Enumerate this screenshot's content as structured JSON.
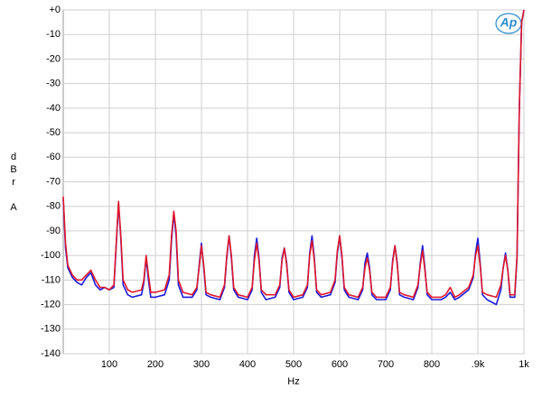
{
  "chart_data": {
    "type": "line",
    "x_label": "Hz",
    "y_label": "dBr",
    "y_label_unit": "A",
    "logo": "Ap",
    "x": [
      0,
      5,
      10,
      20,
      30,
      40,
      50,
      60,
      70,
      80,
      90,
      100,
      110,
      115,
      120,
      125,
      130,
      140,
      150,
      170,
      175,
      180,
      185,
      190,
      200,
      220,
      230,
      235,
      240,
      245,
      250,
      260,
      280,
      290,
      295,
      300,
      305,
      310,
      320,
      340,
      350,
      355,
      360,
      365,
      370,
      380,
      400,
      410,
      415,
      420,
      425,
      430,
      440,
      460,
      470,
      475,
      480,
      485,
      490,
      500,
      520,
      530,
      535,
      540,
      545,
      550,
      560,
      580,
      590,
      595,
      600,
      605,
      610,
      620,
      640,
      650,
      655,
      660,
      665,
      670,
      680,
      700,
      710,
      715,
      720,
      725,
      730,
      740,
      760,
      770,
      775,
      780,
      785,
      790,
      800,
      820,
      830,
      840,
      850,
      860,
      880,
      890,
      895,
      900,
      905,
      910,
      920,
      940,
      950,
      955,
      960,
      965,
      970,
      980,
      985,
      990,
      995,
      1000
    ],
    "series": [
      {
        "color": "#1a1adc",
        "values": [
          -77,
          -97,
          -105,
          -109,
          -111,
          -112,
          -109,
          -107,
          -112,
          -114,
          -113,
          -114,
          -113,
          -96,
          -79,
          -93,
          -112,
          -116,
          -117,
          -116,
          -111,
          -101,
          -110,
          -117,
          -117,
          -116,
          -110,
          -94,
          -83,
          -92,
          -112,
          -117,
          -117,
          -114,
          -104,
          -95,
          -105,
          -116,
          -117,
          -118,
          -113,
          -101,
          -92,
          -101,
          -114,
          -117,
          -118,
          -114,
          -100,
          -93,
          -101,
          -115,
          -118,
          -117,
          -113,
          -101,
          -97,
          -103,
          -115,
          -118,
          -117,
          -113,
          -99,
          -92,
          -101,
          -115,
          -117,
          -116,
          -111,
          -99,
          -92,
          -101,
          -114,
          -117,
          -118,
          -114,
          -103,
          -99,
          -105,
          -116,
          -118,
          -118,
          -114,
          -102,
          -96,
          -103,
          -116,
          -117,
          -118,
          -113,
          -103,
          -96,
          -105,
          -116,
          -118,
          -118,
          -117,
          -115,
          -118,
          -117,
          -114,
          -109,
          -99,
          -93,
          -103,
          -116,
          -118,
          -120,
          -114,
          -105,
          -99,
          -106,
          -117,
          -117,
          -101,
          -40,
          -5,
          0
        ]
      },
      {
        "color": "#e0182c",
        "values": [
          -76,
          -95,
          -104,
          -108,
          -110,
          -110,
          -108,
          -106,
          -110,
          -113,
          -113,
          -114,
          -112,
          -95,
          -78,
          -92,
          -110,
          -114,
          -115,
          -114,
          -110,
          -100,
          -108,
          -115,
          -115,
          -114,
          -108,
          -92,
          -82,
          -90,
          -110,
          -115,
          -116,
          -113,
          -105,
          -96,
          -104,
          -115,
          -116,
          -117,
          -112,
          -100,
          -92,
          -100,
          -113,
          -116,
          -117,
          -113,
          -102,
          -95,
          -102,
          -114,
          -116,
          -116,
          -112,
          -102,
          -97,
          -104,
          -114,
          -117,
          -116,
          -112,
          -100,
          -94,
          -102,
          -114,
          -116,
          -115,
          -110,
          -98,
          -92,
          -100,
          -113,
          -116,
          -117,
          -113,
          -105,
          -101,
          -106,
          -115,
          -117,
          -117,
          -113,
          -103,
          -96,
          -104,
          -115,
          -116,
          -117,
          -112,
          -104,
          -98,
          -106,
          -115,
          -117,
          -117,
          -116,
          -113,
          -117,
          -116,
          -113,
          -108,
          -100,
          -96,
          -104,
          -115,
          -116,
          -117,
          -112,
          -105,
          -100,
          -106,
          -116,
          -116,
          -100,
          -40,
          -5,
          0
        ]
      }
    ],
    "xlim": [
      0,
      1000
    ],
    "xticks": [
      100,
      200,
      300,
      400,
      500,
      600,
      700,
      800,
      {
        "value": 900,
        "label": ".9k"
      },
      {
        "value": 1000,
        "label": "1k"
      }
    ],
    "ylim": [
      -140,
      0
    ],
    "yticks": [
      {
        "value": 0,
        "label": "+0"
      },
      -10,
      -20,
      -30,
      -40,
      -50,
      -60,
      -70,
      -80,
      -90,
      -100,
      -110,
      -120,
      -130,
      -140
    ],
    "grid": true
  }
}
